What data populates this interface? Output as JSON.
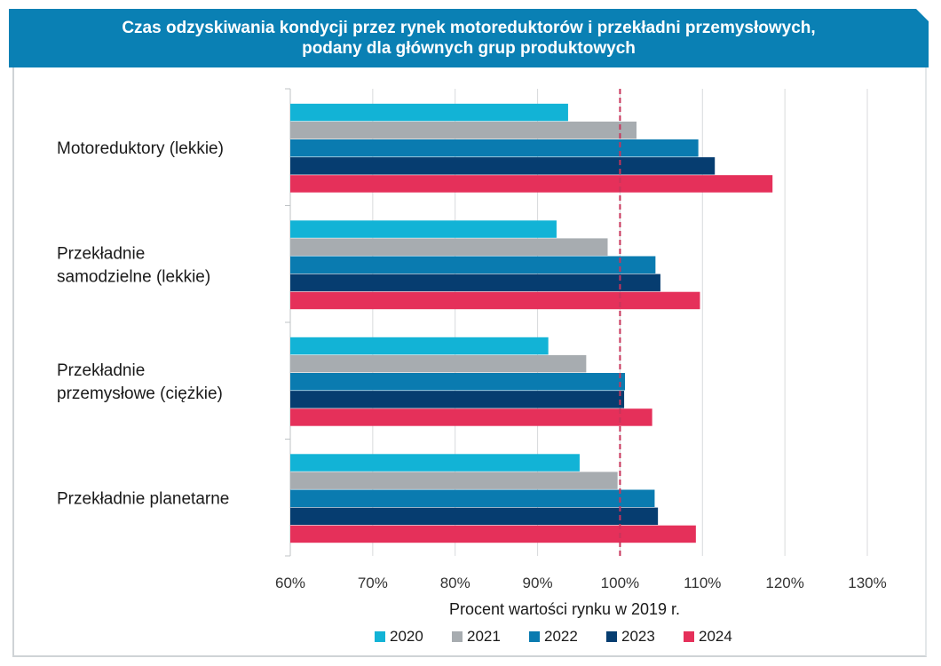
{
  "title": {
    "line1": "Czas odzyskiwania kondycji przez rynek motoreduktorów i przekładni przemysłowych,",
    "line2": "podany dla głównych grup produktowych"
  },
  "chart_data": {
    "type": "bar",
    "orientation": "horizontal",
    "categories": [
      [
        "Motoreduktory (lekkie)"
      ],
      [
        "Przekładnie",
        "samodzielne (lekkie)"
      ],
      [
        "Przekładnie",
        "przemysłowe (ciężkie)"
      ],
      [
        "Przekładnie planetarne"
      ]
    ],
    "series": [
      {
        "name": "2020",
        "color": "#12b3d6",
        "values": [
          93.7,
          92.3,
          91.3,
          95.1
        ]
      },
      {
        "name": "2021",
        "color": "#a7acb0",
        "values": [
          102.0,
          98.5,
          95.9,
          99.7
        ]
      },
      {
        "name": "2022",
        "color": "#0a7bb0",
        "values": [
          109.5,
          104.3,
          100.6,
          104.2
        ]
      },
      {
        "name": "2023",
        "color": "#063d70",
        "values": [
          111.5,
          104.9,
          100.5,
          104.6
        ]
      },
      {
        "name": "2024",
        "color": "#e5305a",
        "values": [
          118.5,
          109.7,
          103.9,
          109.2
        ]
      }
    ],
    "xlim": [
      60,
      130
    ],
    "ticks": [
      60,
      70,
      80,
      90,
      100,
      110,
      120,
      130
    ],
    "tick_labels": [
      "60%",
      "70%",
      "80%",
      "90%",
      "100%",
      "110%",
      "120%",
      "130%"
    ],
    "xlabel": "Procent wartości rynku w 2019 r.",
    "reference_line": {
      "value": 100,
      "color": "#c8345a",
      "style": "dashed"
    },
    "grid": true,
    "legend_position": "bottom"
  }
}
